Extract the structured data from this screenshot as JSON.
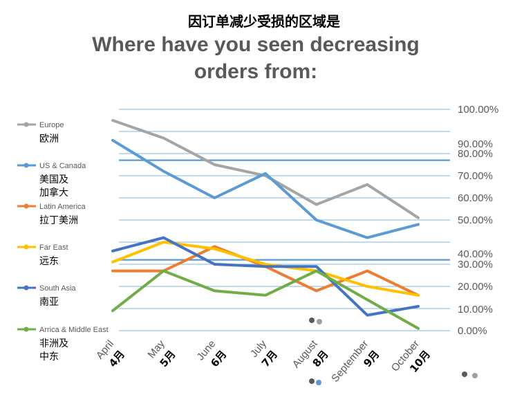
{
  "chart_data": {
    "type": "line",
    "title_cn": "因订单减少受损的区域是",
    "title_en_line1": "Where have you seen decreasing",
    "title_en_line2": "orders from:",
    "categories": [
      {
        "en": "April",
        "cn": "4月"
      },
      {
        "en": "May",
        "cn": "5月"
      },
      {
        "en": "June",
        "cn": "6月"
      },
      {
        "en": "July",
        "cn": "7月"
      },
      {
        "en": "August",
        "cn": "8月"
      },
      {
        "en": "September",
        "cn": "9月"
      },
      {
        "en": "October",
        "cn": "10月"
      }
    ],
    "y_tick_labels": [
      "100.00%",
      "90.00%",
      "80.00%",
      "70.00%",
      "60.00%",
      "50.00%",
      "40.00%",
      "30.00%",
      "20.00%",
      "10.00%",
      "0.00%"
    ],
    "ylim": [
      0,
      1
    ],
    "legend_position": "left",
    "series": [
      {
        "name": "Europe",
        "name_cn": [
          "欧洲"
        ],
        "color": "#A5A5A5",
        "values": [
          0.95,
          0.87,
          0.75,
          0.7,
          0.57,
          0.66,
          0.51
        ]
      },
      {
        "name": "US & Canada",
        "name_cn": [
          "美国及",
          "加拿大"
        ],
        "color": "#5B9BD5",
        "values": [
          0.86,
          0.72,
          0.6,
          0.71,
          0.5,
          0.42,
          0.48
        ]
      },
      {
        "name": "Latin America",
        "name_cn": [
          "拉丁美洲"
        ],
        "color": "#ED7D31",
        "values": [
          0.27,
          0.27,
          0.38,
          0.29,
          0.18,
          0.27,
          0.16
        ]
      },
      {
        "name": "Far East",
        "name_cn": [
          "远东"
        ],
        "color": "#FFC000",
        "values": [
          0.31,
          0.4,
          0.37,
          0.3,
          0.27,
          0.2,
          0.16
        ]
      },
      {
        "name": "South Asia",
        "name_cn": [
          "南亚"
        ],
        "color": "#4472C4",
        "values": [
          0.36,
          0.42,
          0.3,
          0.29,
          0.29,
          0.07,
          0.11
        ]
      },
      {
        "name": "Arrica & Middle East",
        "name_cn": [
          "非洲及",
          "中东"
        ],
        "color": "#70AD47",
        "values": [
          0.09,
          0.27,
          0.18,
          0.16,
          0.27,
          0.14,
          0.01
        ]
      }
    ]
  }
}
